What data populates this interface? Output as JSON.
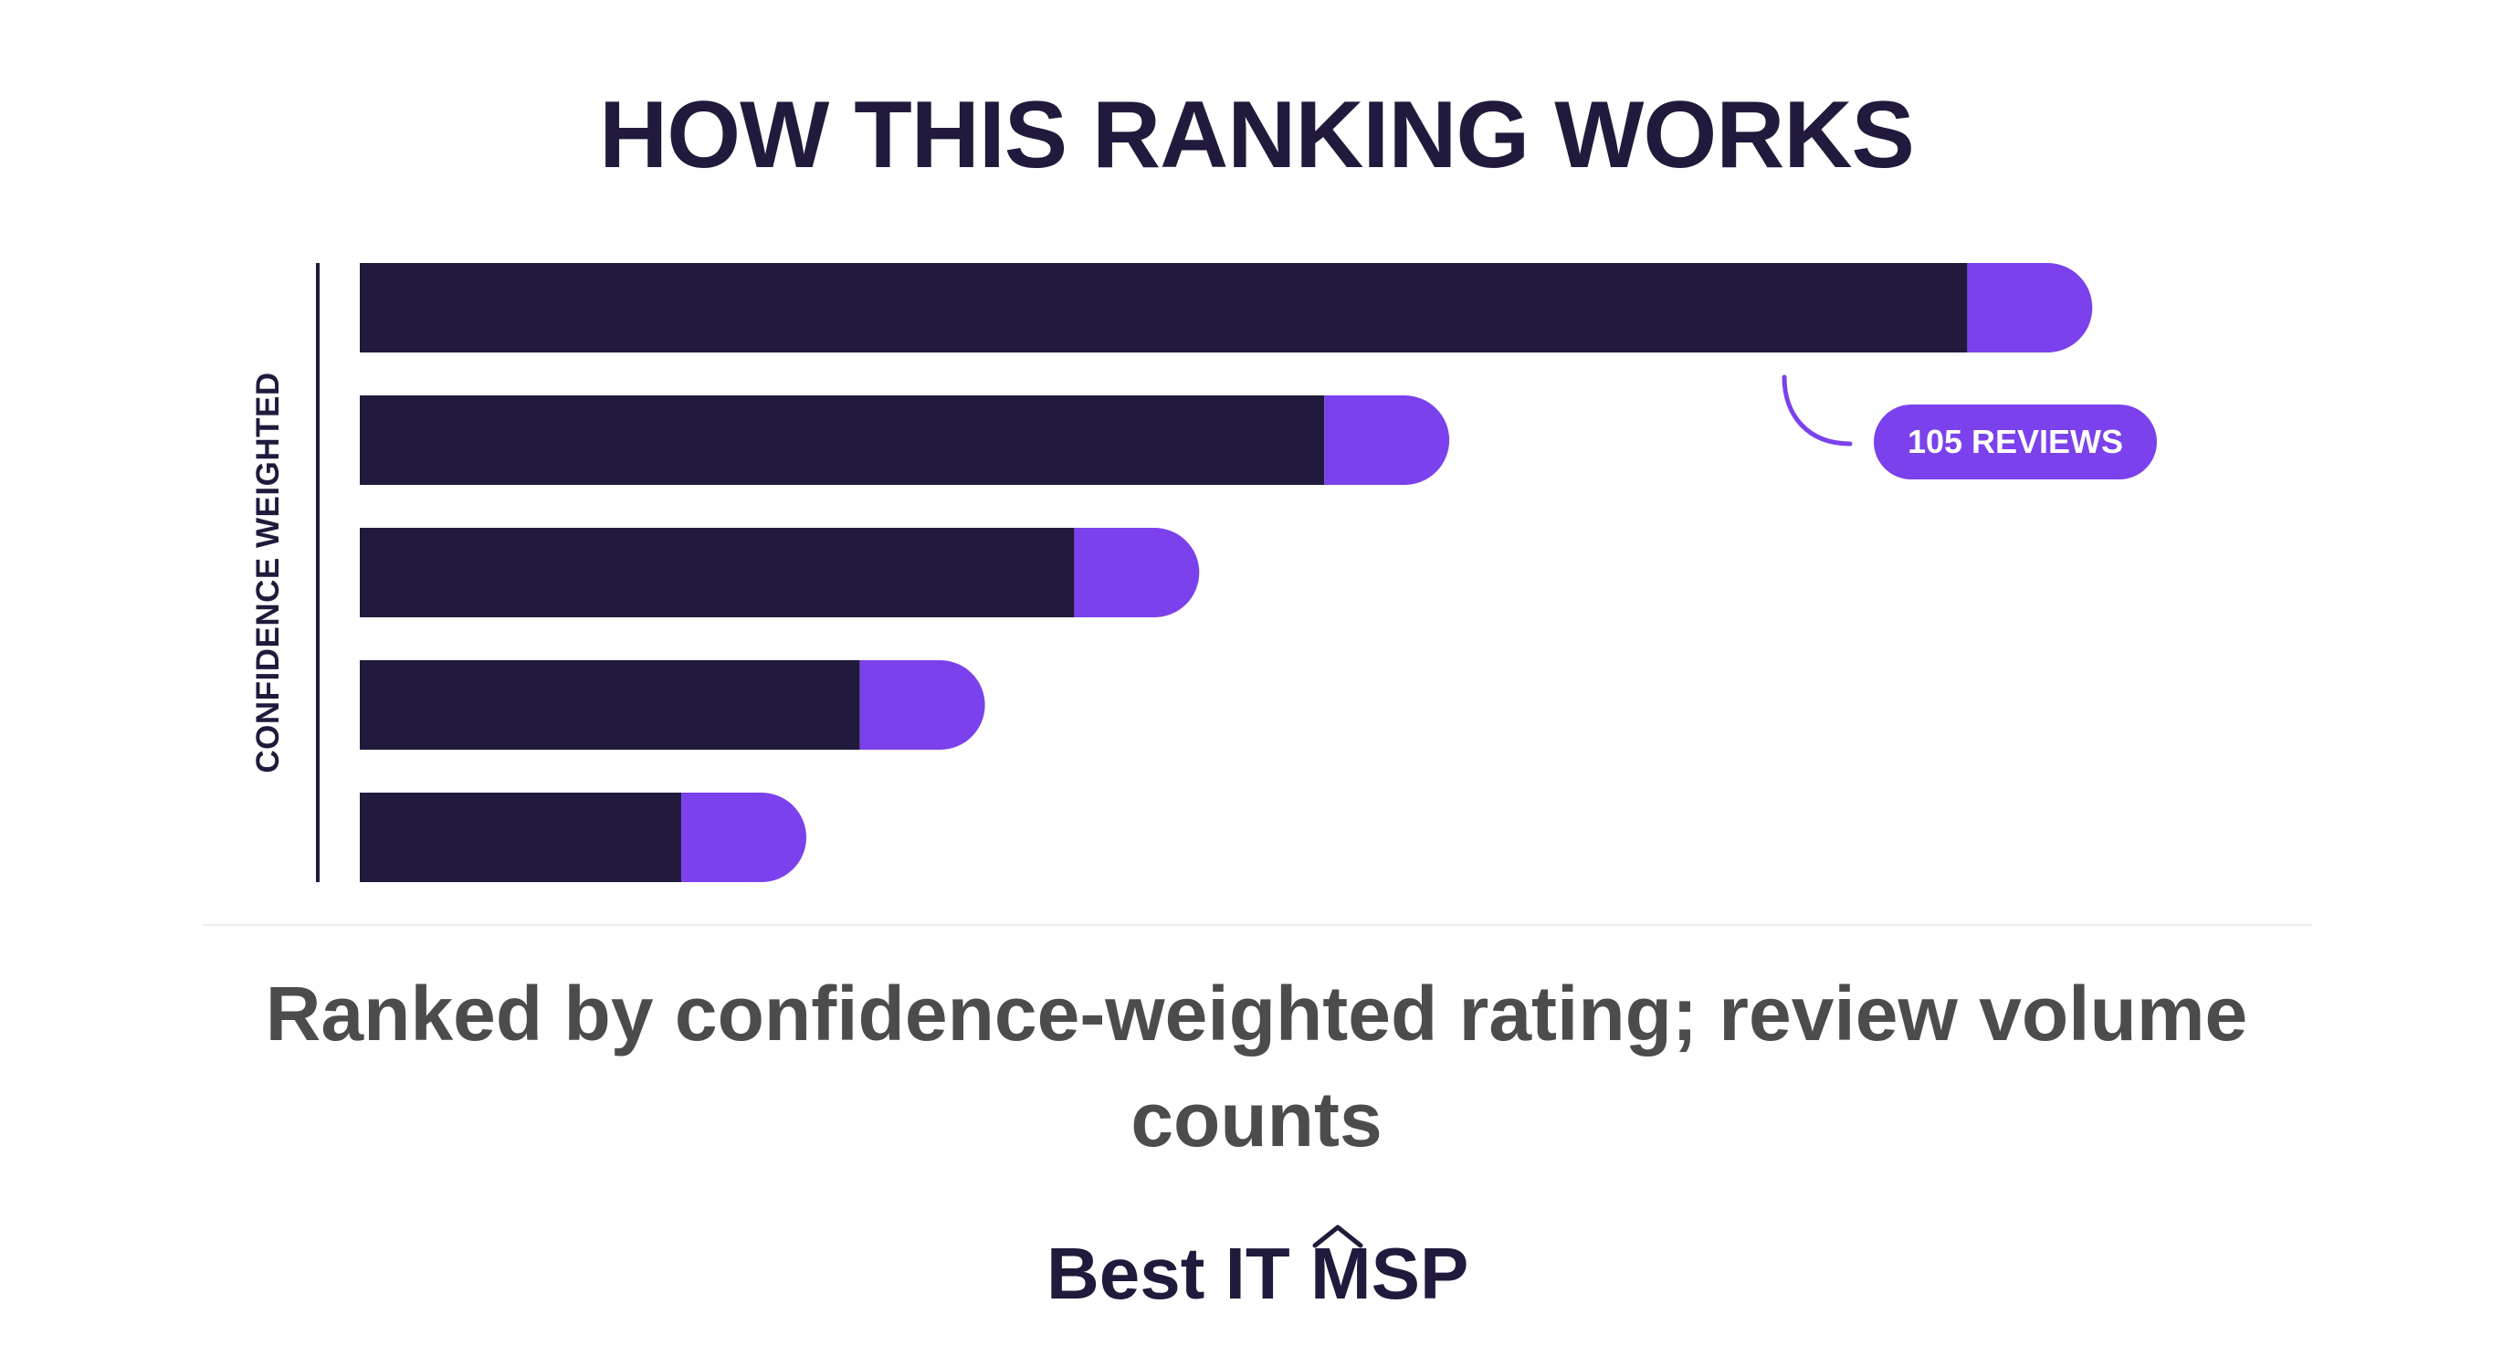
{
  "title": "HOW THIS RANKING WORKS",
  "chart_data": {
    "type": "bar",
    "orientation": "horizontal",
    "title": "HOW THIS RANKING WORKS",
    "ylabel": "CONFIDENCE WEIGHTED",
    "xlabel": "",
    "legend": "none",
    "grid": false,
    "xlim": [
      0,
      100
    ],
    "categories": [
      "",
      "",
      "",
      "",
      ""
    ],
    "series": [
      {
        "values": [
          90,
          54,
          40,
          28,
          18
        ]
      },
      {
        "values": [
          7,
          7,
          7,
          7,
          7
        ]
      }
    ],
    "colors": [
      "#211a3c",
      "#7b41ec"
    ],
    "annotation": {
      "text": "105 REVIEWS",
      "bar_index": 0
    }
  },
  "caption": "Ranked by confidence-weighted rating; review volume counts",
  "logo": {
    "text": "Best IT MSP",
    "icon": "chevron-up-icon"
  },
  "colors": {
    "dark": "#211a3c",
    "accent": "#7b41ec",
    "caption": "#4c4c4c"
  }
}
